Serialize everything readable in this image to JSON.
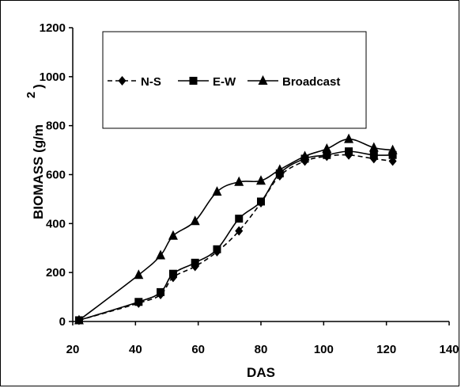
{
  "chart_data": {
    "type": "line",
    "title": "",
    "xlabel": "DAS",
    "ylabel": "BIOMASS (g/m",
    "ylabel_superscript": "2",
    "ylabel_suffix": ")",
    "xlim": [
      20,
      140
    ],
    "ylim": [
      0,
      1200
    ],
    "xticks": [
      20,
      40,
      60,
      80,
      100,
      120,
      140
    ],
    "yticks": [
      0,
      200,
      400,
      600,
      800,
      1000,
      1200
    ],
    "grid": false,
    "legend_placement": "top",
    "series": [
      {
        "name": "N-S",
        "marker": "diamond",
        "dash": "dashed",
        "x": [
          22,
          41,
          48,
          52,
          59,
          66,
          73,
          80,
          86,
          94,
          101,
          108,
          116,
          122
        ],
        "y": [
          5,
          75,
          110,
          180,
          225,
          285,
          370,
          485,
          595,
          655,
          675,
          680,
          665,
          655
        ]
      },
      {
        "name": "E-W",
        "marker": "square",
        "dash": "solid",
        "x": [
          22,
          41,
          48,
          52,
          59,
          66,
          73,
          80,
          86,
          94,
          101,
          108,
          116,
          122
        ],
        "y": [
          5,
          80,
          120,
          195,
          240,
          295,
          420,
          490,
          605,
          665,
          680,
          695,
          680,
          680
        ]
      },
      {
        "name": "Broadcast",
        "marker": "triangle",
        "dash": "solid",
        "x": [
          22,
          41,
          48,
          52,
          59,
          66,
          73,
          80,
          86,
          94,
          101,
          108,
          116,
          122
        ],
        "y": [
          5,
          190,
          270,
          350,
          410,
          530,
          570,
          575,
          620,
          675,
          705,
          745,
          710,
          700
        ]
      }
    ]
  }
}
